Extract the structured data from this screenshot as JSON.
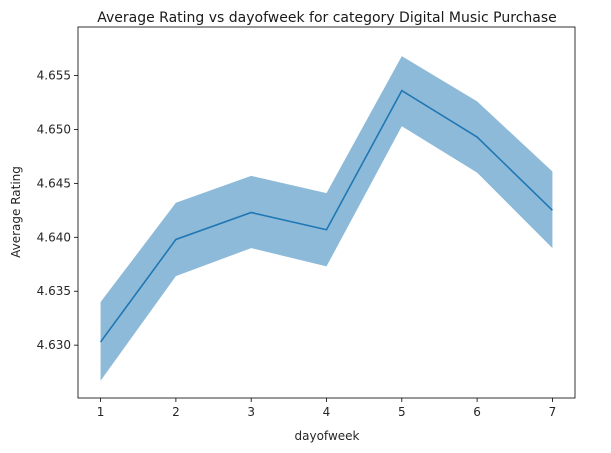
{
  "chart_data": {
    "type": "line",
    "title": "Average Rating vs dayofweek for category Digital Music Purchase",
    "xlabel": "dayofweek",
    "ylabel": "Average Rating",
    "x": [
      1,
      2,
      3,
      4,
      5,
      6,
      7
    ],
    "series": [
      {
        "values": [
          4.6303,
          4.6398,
          4.6423,
          4.6407,
          4.6536,
          4.6493,
          4.6425
        ],
        "ci_lower": [
          4.6267,
          4.6364,
          4.639,
          4.6373,
          4.6503,
          4.646,
          4.639
        ],
        "ci_upper": [
          4.634,
          4.6432,
          4.6457,
          4.6441,
          4.6568,
          4.6526,
          4.6461
        ]
      }
    ],
    "xlim": [
      0.7,
      7.3
    ],
    "ylim": [
      4.6251,
      4.6595
    ],
    "xticks": [
      "1",
      "2",
      "3",
      "4",
      "5",
      "6",
      "7"
    ],
    "yticks": [
      "4.630",
      "4.635",
      "4.640",
      "4.645",
      "4.650",
      "4.655"
    ],
    "grid": false,
    "legend": "none",
    "colors": {
      "line": "#1f77b4",
      "band": "#8ebad9"
    }
  }
}
